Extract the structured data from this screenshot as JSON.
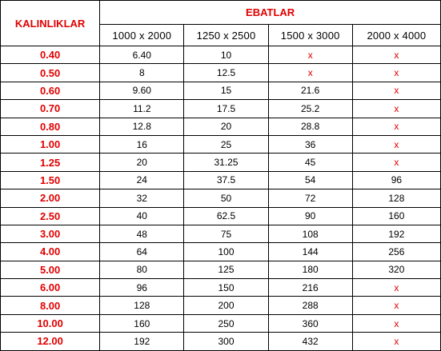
{
  "table": {
    "thickness_header": "KALINLIKLAR",
    "sizes_header": "EBATLAR",
    "size_columns": [
      "1000 x 2000",
      "1250 x 2500",
      "1500 x 3000",
      "2000 x 4000"
    ],
    "not_available_color": "#e00000",
    "header_color": "#e00000",
    "rows": [
      {
        "thickness": "0.40",
        "values": [
          "6.40",
          "10",
          "x",
          "x"
        ]
      },
      {
        "thickness": "0.50",
        "values": [
          "8",
          "12.5",
          "x",
          "x"
        ]
      },
      {
        "thickness": "0.60",
        "values": [
          "9.60",
          "15",
          "21.6",
          "x"
        ]
      },
      {
        "thickness": "0.70",
        "values": [
          "11.2",
          "17.5",
          "25.2",
          "x"
        ]
      },
      {
        "thickness": "0.80",
        "values": [
          "12.8",
          "20",
          "28.8",
          "x"
        ]
      },
      {
        "thickness": "1.00",
        "values": [
          "16",
          "25",
          "36",
          "x"
        ]
      },
      {
        "thickness": "1.25",
        "values": [
          "20",
          "31.25",
          "45",
          "x"
        ]
      },
      {
        "thickness": "1.50",
        "values": [
          "24",
          "37.5",
          "54",
          "96"
        ]
      },
      {
        "thickness": "2.00",
        "values": [
          "32",
          "50",
          "72",
          "128"
        ]
      },
      {
        "thickness": "2.50",
        "values": [
          "40",
          "62.5",
          "90",
          "160"
        ]
      },
      {
        "thickness": "3.00",
        "values": [
          "48",
          "75",
          "108",
          "192"
        ]
      },
      {
        "thickness": "4.00",
        "values": [
          "64",
          "100",
          "144",
          "256"
        ]
      },
      {
        "thickness": "5.00",
        "values": [
          "80",
          "125",
          "180",
          "320"
        ]
      },
      {
        "thickness": "6.00",
        "values": [
          "96",
          "150",
          "216",
          "x"
        ]
      },
      {
        "thickness": "8.00",
        "values": [
          "128",
          "200",
          "288",
          "x"
        ]
      },
      {
        "thickness": "10.00",
        "values": [
          "160",
          "250",
          "360",
          "x"
        ]
      },
      {
        "thickness": "12.00",
        "values": [
          "192",
          "300",
          "432",
          "x"
        ]
      }
    ]
  }
}
